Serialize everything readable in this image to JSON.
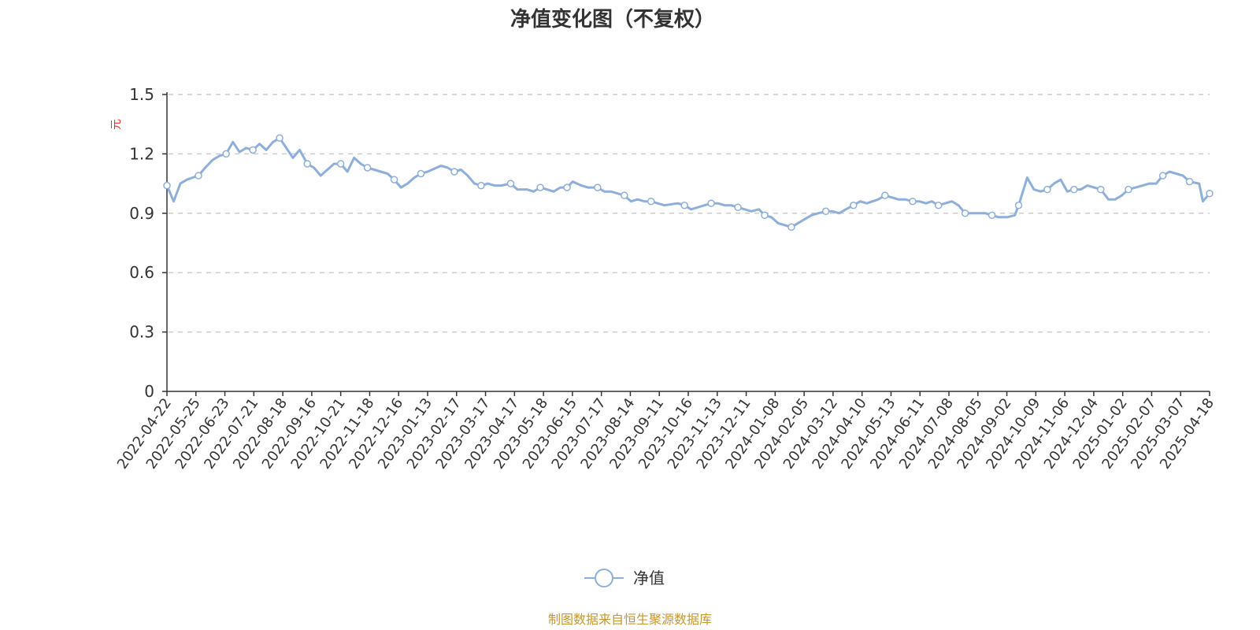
{
  "colors": {
    "line": "#8eaedb",
    "marker_fill": "#ffffff",
    "axis": "#333333",
    "grid": "#cccccc",
    "unit": "#e8302a",
    "footer": "#c8962e",
    "text": "#333333"
  },
  "legend": {
    "label": "净值",
    "icon": "line-circle-marker-icon",
    "position": "bottom-center"
  },
  "footer": {
    "source_text": "制图数据来自恒生聚源数据库"
  },
  "chart_data": {
    "type": "line",
    "title": "净值变化图（不复权）",
    "xlabel": "",
    "ylabel": "元",
    "ylim": [
      0,
      1.5
    ],
    "yticks": [
      "0",
      "0.3",
      "0.6",
      "0.9",
      "1.2",
      "1.5"
    ],
    "grid": true,
    "x_tick_labels": [
      "2022-04-22",
      "2022-05-25",
      "2022-06-23",
      "2022-07-21",
      "2022-08-18",
      "2022-09-16",
      "2022-10-21",
      "2022-11-18",
      "2022-12-16",
      "2023-01-13",
      "2023-02-17",
      "2023-03-17",
      "2023-04-17",
      "2023-05-18",
      "2023-06-15",
      "2023-07-17",
      "2023-08-14",
      "2023-09-11",
      "2023-10-16",
      "2023-11-13",
      "2023-12-11",
      "2024-01-08",
      "2024-02-05",
      "2024-03-12",
      "2024-04-10",
      "2024-05-13",
      "2024-06-11",
      "2024-07-08",
      "2024-08-05",
      "2024-09-02",
      "2024-10-09",
      "2024-11-06",
      "2024-12-04",
      "2025-01-02",
      "2025-02-07",
      "2025-03-07",
      "2025-04-18"
    ],
    "series": [
      {
        "name": "净值",
        "x": [
          "2022-04-22",
          "2022-04-29",
          "2022-05-06",
          "2022-05-13",
          "2022-05-25",
          "2022-06-01",
          "2022-06-09",
          "2022-06-16",
          "2022-06-23",
          "2022-06-30",
          "2022-07-07",
          "2022-07-14",
          "2022-07-21",
          "2022-07-28",
          "2022-08-04",
          "2022-08-11",
          "2022-08-18",
          "2022-08-25",
          "2022-09-01",
          "2022-09-08",
          "2022-09-16",
          "2022-09-23",
          "2022-09-30",
          "2022-10-14",
          "2022-10-21",
          "2022-10-28",
          "2022-11-04",
          "2022-11-11",
          "2022-11-18",
          "2022-11-25",
          "2022-12-02",
          "2022-12-09",
          "2022-12-16",
          "2022-12-23",
          "2022-12-30",
          "2023-01-06",
          "2023-01-13",
          "2023-01-20",
          "2023-02-03",
          "2023-02-10",
          "2023-02-17",
          "2023-02-24",
          "2023-03-03",
          "2023-03-10",
          "2023-03-17",
          "2023-03-24",
          "2023-03-31",
          "2023-04-07",
          "2023-04-17",
          "2023-04-24",
          "2023-05-04",
          "2023-05-11",
          "2023-05-18",
          "2023-05-25",
          "2023-06-01",
          "2023-06-08",
          "2023-06-15",
          "2023-06-21",
          "2023-06-30",
          "2023-07-07",
          "2023-07-17",
          "2023-07-24",
          "2023-07-31",
          "2023-08-07",
          "2023-08-14",
          "2023-08-21",
          "2023-08-28",
          "2023-09-04",
          "2023-09-11",
          "2023-09-18",
          "2023-09-25",
          "2023-10-09",
          "2023-10-16",
          "2023-10-23",
          "2023-10-30",
          "2023-11-06",
          "2023-11-13",
          "2023-11-20",
          "2023-11-27",
          "2023-12-04",
          "2023-12-11",
          "2023-12-18",
          "2023-12-25",
          "2024-01-02",
          "2024-01-08",
          "2024-01-15",
          "2024-01-22",
          "2024-01-29",
          "2024-02-05",
          "2024-02-19",
          "2024-02-26",
          "2024-03-04",
          "2024-03-12",
          "2024-03-19",
          "2024-03-26",
          "2024-04-02",
          "2024-04-10",
          "2024-04-17",
          "2024-04-24",
          "2024-05-06",
          "2024-05-13",
          "2024-05-20",
          "2024-05-27",
          "2024-06-03",
          "2024-06-11",
          "2024-06-18",
          "2024-06-25",
          "2024-07-01",
          "2024-07-08",
          "2024-07-15",
          "2024-07-22",
          "2024-07-29",
          "2024-08-05",
          "2024-08-12",
          "2024-08-19",
          "2024-08-26",
          "2024-09-02",
          "2024-09-09",
          "2024-09-18",
          "2024-09-26",
          "2024-09-30",
          "2024-10-09",
          "2024-10-16",
          "2024-10-23",
          "2024-10-30",
          "2024-11-06",
          "2024-11-13",
          "2024-11-20",
          "2024-11-27",
          "2024-12-04",
          "2024-12-11",
          "2024-12-18",
          "2024-12-25",
          "2025-01-02",
          "2025-01-09",
          "2025-01-16",
          "2025-01-23",
          "2025-02-07",
          "2025-02-14",
          "2025-02-21",
          "2025-02-28",
          "2025-03-07",
          "2025-03-14",
          "2025-03-21",
          "2025-03-28",
          "2025-04-07",
          "2025-04-11",
          "2025-04-18"
        ],
        "values": [
          1.04,
          0.96,
          1.05,
          1.07,
          1.09,
          1.13,
          1.17,
          1.19,
          1.2,
          1.26,
          1.21,
          1.23,
          1.22,
          1.25,
          1.22,
          1.26,
          1.28,
          1.23,
          1.18,
          1.22,
          1.15,
          1.13,
          1.09,
          1.15,
          1.15,
          1.11,
          1.18,
          1.15,
          1.13,
          1.12,
          1.11,
          1.1,
          1.07,
          1.03,
          1.05,
          1.08,
          1.1,
          1.11,
          1.14,
          1.13,
          1.11,
          1.12,
          1.09,
          1.05,
          1.04,
          1.05,
          1.04,
          1.04,
          1.05,
          1.02,
          1.02,
          1.01,
          1.03,
          1.02,
          1.01,
          1.03,
          1.03,
          1.06,
          1.04,
          1.03,
          1.03,
          1.01,
          1.01,
          1.0,
          0.99,
          0.96,
          0.97,
          0.96,
          0.96,
          0.95,
          0.94,
          0.95,
          0.94,
          0.92,
          0.93,
          0.94,
          0.95,
          0.95,
          0.94,
          0.94,
          0.93,
          0.92,
          0.91,
          0.92,
          0.89,
          0.88,
          0.85,
          0.84,
          0.83,
          0.87,
          0.89,
          0.9,
          0.91,
          0.91,
          0.9,
          0.92,
          0.94,
          0.96,
          0.95,
          0.97,
          0.99,
          0.98,
          0.97,
          0.97,
          0.96,
          0.96,
          0.95,
          0.96,
          0.94,
          0.95,
          0.96,
          0.94,
          0.9,
          0.9,
          0.9,
          0.9,
          0.89,
          0.88,
          0.88,
          0.89,
          0.94,
          1.08,
          1.02,
          1.01,
          1.02,
          1.05,
          1.07,
          1.01,
          1.02,
          1.02,
          1.04,
          1.03,
          1.02,
          0.97,
          0.97,
          0.99,
          1.02,
          1.04,
          1.05,
          1.05,
          1.09,
          1.11,
          1.1,
          1.09,
          1.06,
          1.05,
          0.96,
          1.0
        ]
      }
    ]
  }
}
